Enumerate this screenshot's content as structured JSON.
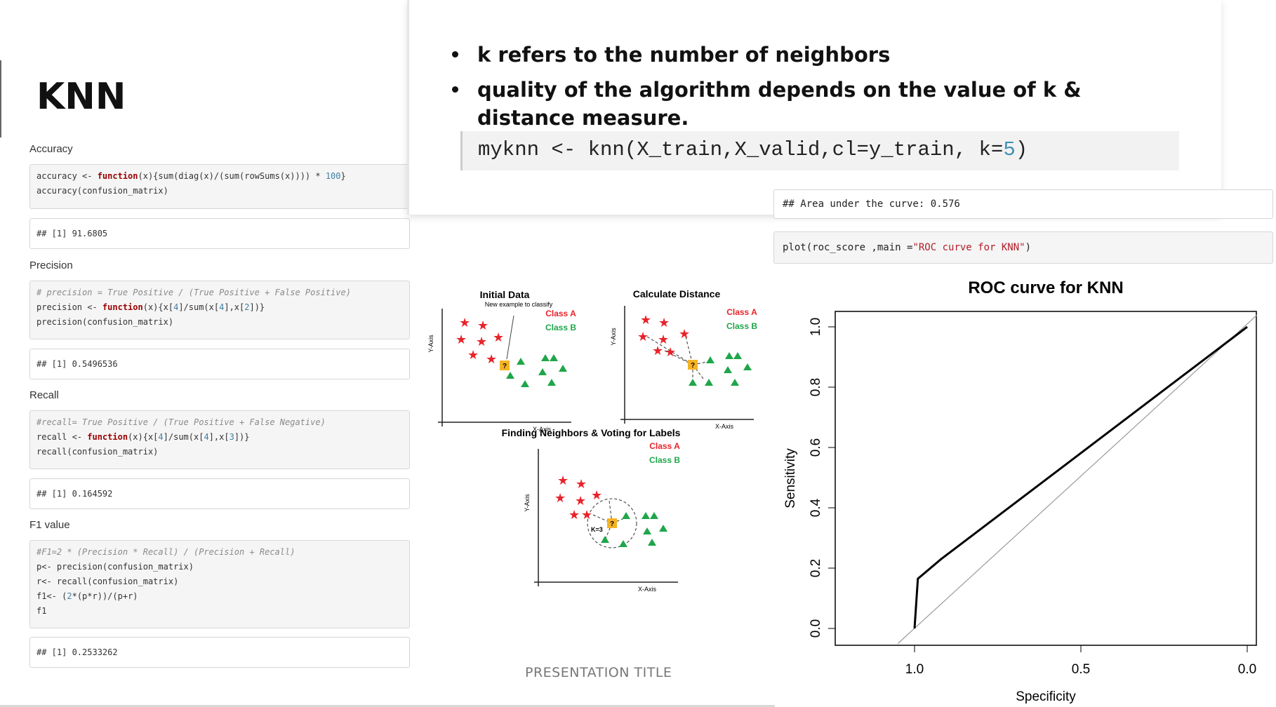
{
  "slide": {
    "title": "KNN",
    "footer": "PRESENTATION TITLE"
  },
  "bullets": [
    "k refers to the number of neighbors",
    "quality of the algorithm depends on the value of k & distance measure."
  ],
  "knn_call": {
    "pre": "myknn <- knn(X_train,X_valid,cl=y_train, k=",
    "k_value": "5",
    "post": ")"
  },
  "rmd": {
    "accuracy": {
      "label": "Accuracy",
      "code_line2": "accuracy(confusion_matrix)",
      "output": "## [1] 91.6805"
    },
    "precision": {
      "label": "Precision",
      "comment": "# precision = True Positive / (True Positive + False Positive)",
      "code_line3": "precision(confusion_matrix)",
      "output": "## [1] 0.5496536"
    },
    "recall": {
      "label": "Recall",
      "comment": "#recall= True Positive / (True Positive + False Negative)",
      "code_line3": "recall(confusion_matrix)",
      "output": "## [1] 0.164592"
    },
    "f1": {
      "label": "F1 value",
      "comment": "#F1=2 * (Precision * Recall) / (Precision + Recall)",
      "code_line2": "p<- precision(confusion_matrix)",
      "code_line3": "r<- recall(confusion_matrix)",
      "code_line5": "f1",
      "output": "## [1] 0.2533262"
    }
  },
  "roc_code": {
    "auc_output": "## Area under the curve: 0.576",
    "plot_call_pre": "plot(roc_score ,main =",
    "plot_call_str": "\"ROC curve for KNN\"",
    "plot_call_post": ")"
  },
  "knn_diagram": {
    "panel1_title": "Initial Data",
    "panel2_title": "Calculate Distance",
    "panel3_title": "Finding Neighbors & Voting for Labels",
    "new_example": "New example to classify",
    "class_a": "Class A",
    "class_b": "Class B",
    "x_axis": "X-Axis",
    "y_axis": "Y-Axis",
    "k_label": "K=3",
    "colors": {
      "class_a": "#e8232a",
      "class_b": "#1fa64a",
      "query": "#f5b324"
    }
  },
  "chart_data": {
    "type": "line",
    "title": "ROC curve for KNN",
    "xlabel": "Specificity",
    "ylabel": "Sensitivity",
    "x_reversed": true,
    "xlim": [
      1.0,
      0.0
    ],
    "ylim": [
      0.0,
      1.0
    ],
    "x_ticks": [
      "1.0",
      "0.5",
      "0.0"
    ],
    "y_ticks": [
      "0.0",
      "0.2",
      "0.4",
      "0.6",
      "0.8",
      "1.0"
    ],
    "series": [
      {
        "x": [
          1.0,
          0.99,
          0.92,
          0.0
        ],
        "y": [
          0.0,
          0.165,
          0.23,
          1.0
        ]
      }
    ],
    "reference_line": {
      "x": [
        1.05,
        -0.03
      ],
      "y": [
        -0.05,
        1.04
      ]
    }
  }
}
